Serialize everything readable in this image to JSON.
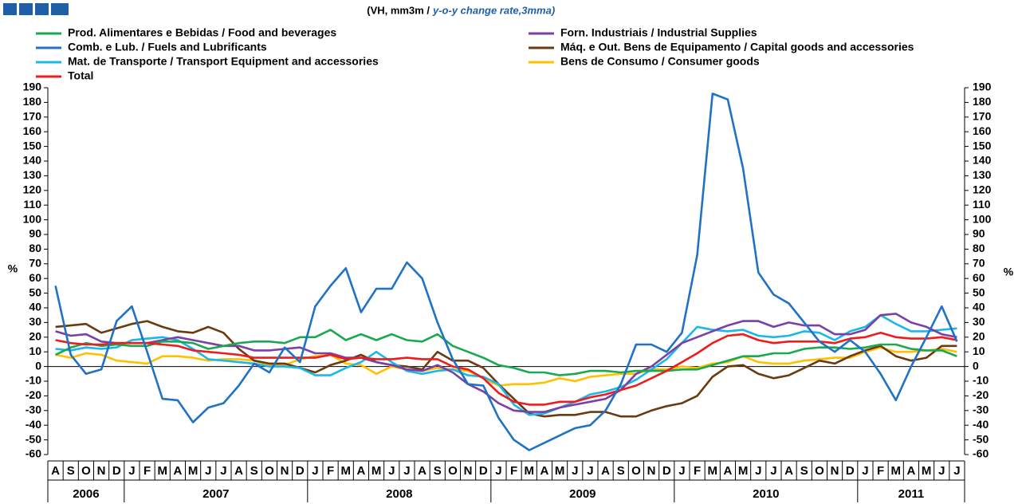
{
  "chart_data": {
    "type": "line",
    "title": "(VH, mm3m /",
    "subtitle": "y-o-y change rate,3mma)",
    "y_unit": "%",
    "categories": [
      "A",
      "S",
      "O",
      "N",
      "D",
      "J",
      "F",
      "M",
      "A",
      "M",
      "J",
      "J",
      "A",
      "S",
      "O",
      "N",
      "D",
      "J",
      "F",
      "M",
      "A",
      "M",
      "J",
      "J",
      "A",
      "S",
      "O",
      "N",
      "D",
      "J",
      "F",
      "M",
      "A",
      "M",
      "J",
      "J",
      "A",
      "S",
      "O",
      "N",
      "D",
      "J",
      "F",
      "M",
      "A",
      "M",
      "J",
      "J",
      "A",
      "S",
      "O",
      "N",
      "D",
      "J",
      "F",
      "M",
      "A",
      "M",
      "J",
      "J"
    ],
    "years": [
      "2006",
      "2007",
      "2008",
      "2009",
      "2010",
      "2011"
    ],
    "ylim": [
      -60,
      190
    ],
    "yticks": [
      -60,
      -50,
      -40,
      -30,
      -20,
      -10,
      0,
      10,
      20,
      30,
      40,
      50,
      60,
      70,
      80,
      90,
      100,
      110,
      120,
      130,
      140,
      150,
      160,
      170,
      180,
      190
    ],
    "y2lim": [
      -60,
      190
    ],
    "y2ticks": [
      -60,
      -50,
      -40,
      -30,
      -20,
      -10,
      0,
      10,
      20,
      30,
      40,
      50,
      60,
      70,
      80,
      90,
      100,
      110,
      120,
      130,
      140,
      150,
      160,
      170,
      180,
      190
    ],
    "series": [
      {
        "name": "Prod. Alimentares e Bebidas / Food and beverages",
        "color": "#1aa94f",
        "values": [
          8,
          13,
          16,
          14,
          15,
          14,
          14,
          17,
          17,
          16,
          12,
          14,
          16,
          17,
          17,
          16,
          20,
          20,
          25,
          18,
          22,
          18,
          22,
          18,
          17,
          22,
          14,
          10,
          6,
          1,
          -1,
          -4,
          -4,
          -6,
          -5,
          -3,
          -3,
          -4,
          -3,
          -3,
          -3,
          -2,
          -2,
          1,
          4,
          7,
          7,
          9,
          9,
          12,
          13,
          13,
          12,
          13,
          15,
          15,
          12,
          11,
          11,
          7
        ]
      },
      {
        "name": "Comb. e Lub. /  Fuels and Lubrificants",
        "color": "#1f72c4",
        "values": [
          55,
          8,
          -5,
          -2,
          31,
          41,
          10,
          -22,
          -23,
          -38,
          -28,
          -25,
          -13,
          2,
          -4,
          13,
          3,
          41,
          55,
          67,
          37,
          53,
          53,
          71,
          60,
          30,
          5,
          -12,
          -13,
          -35,
          -50,
          -57,
          -52,
          -47,
          -42,
          -40,
          -30,
          -12,
          15,
          15,
          10,
          23,
          76,
          186,
          182,
          135,
          64,
          49,
          43,
          30,
          17,
          10,
          18,
          10,
          -5,
          -23,
          0,
          20,
          41,
          17
        ]
      },
      {
        "name": "Mat. de Transporte / Transport Equipment and accessories",
        "color": "#1ab8e8",
        "values": [
          12,
          11,
          13,
          12,
          13,
          18,
          19,
          20,
          18,
          12,
          5,
          4,
          3,
          2,
          0,
          0,
          -1,
          -6,
          -6,
          -1,
          3,
          10,
          3,
          -3,
          -5,
          -3,
          -2,
          -6,
          -7,
          -12,
          -26,
          -33,
          -32,
          -28,
          -24,
          -19,
          -17,
          -14,
          -9,
          -2,
          5,
          16,
          27,
          25,
          24,
          25,
          21,
          20,
          21,
          24,
          23,
          18,
          24,
          27,
          35,
          29,
          24,
          24,
          25,
          26
        ]
      },
      {
        "name": "Total",
        "color": "#ee1c1c",
        "values": [
          18,
          16,
          15,
          15,
          16,
          16,
          16,
          15,
          14,
          11,
          10,
          9,
          8,
          6,
          6,
          6,
          6,
          6,
          8,
          5,
          6,
          5,
          5,
          6,
          5,
          5,
          0,
          -2,
          -8,
          -18,
          -24,
          -26,
          -26,
          -24,
          -24,
          -21,
          -19,
          -16,
          -13,
          -8,
          -3,
          3,
          9,
          16,
          21,
          22,
          18,
          16,
          17,
          17,
          17,
          16,
          19,
          20,
          23,
          20,
          19,
          19,
          20,
          18
        ]
      },
      {
        "name": "Forn. Industriais / Industrial Supplies",
        "color": "#7b3fa8",
        "values": [
          24,
          21,
          22,
          17,
          16,
          16,
          16,
          18,
          20,
          18,
          16,
          14,
          14,
          11,
          11,
          12,
          13,
          9,
          9,
          6,
          6,
          3,
          1,
          -2,
          -3,
          1,
          -4,
          -12,
          -17,
          -25,
          -30,
          -31,
          -31,
          -28,
          -26,
          -24,
          -22,
          -16,
          -5,
          0,
          8,
          16,
          20,
          24,
          28,
          31,
          31,
          27,
          30,
          28,
          28,
          22,
          22,
          25,
          35,
          36,
          30,
          27,
          22,
          20
        ]
      },
      {
        "name": "Máq. e Out. Bens de Equipamento / Capital goods and accessories",
        "color": "#6b3a10",
        "values": [
          27,
          28,
          29,
          23,
          26,
          29,
          31,
          27,
          24,
          23,
          27,
          23,
          12,
          4,
          2,
          2,
          -1,
          -4,
          1,
          4,
          8,
          3,
          1,
          0,
          -2,
          10,
          4,
          4,
          -1,
          -12,
          -22,
          -32,
          -34,
          -33,
          -33,
          -31,
          -31,
          -34,
          -34,
          -30,
          -27,
          -25,
          -20,
          -7,
          0,
          1,
          -5,
          -8,
          -6,
          -1,
          4,
          2,
          7,
          11,
          14,
          7,
          4,
          6,
          14,
          14
        ]
      },
      {
        "name": "Bens de Consumo / Consumer goods",
        "color": "#ffc000",
        "values": [
          8,
          6,
          9,
          8,
          4,
          3,
          2,
          7,
          7,
          6,
          4,
          5,
          5,
          4,
          1,
          1,
          5,
          7,
          8,
          2,
          1,
          -5,
          0,
          -2,
          -3,
          -1,
          -2,
          -3,
          -8,
          -13,
          -12,
          -12,
          -11,
          -8,
          -10,
          -7,
          -6,
          -5,
          -5,
          -2,
          -2,
          0,
          -1,
          2,
          3,
          7,
          3,
          2,
          2,
          4,
          5,
          6,
          6,
          10,
          13,
          10,
          10,
          11,
          12,
          10
        ]
      }
    ]
  }
}
